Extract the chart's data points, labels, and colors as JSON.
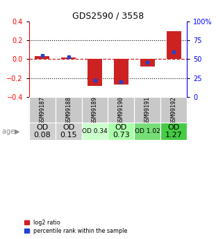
{
  "title": "GDS2590 / 3558",
  "samples": [
    "GSM99187",
    "GSM99188",
    "GSM99189",
    "GSM99190",
    "GSM99191",
    "GSM99192"
  ],
  "log2_ratio": [
    0.03,
    0.02,
    -0.28,
    -0.27,
    -0.08,
    0.3
  ],
  "percentile_rank_pct": [
    55,
    53,
    22,
    20,
    46,
    60
  ],
  "od_values": [
    "OD\n0.08",
    "OD\n0.15",
    "OD 0.34",
    "OD\n0.73",
    "OD 1.02",
    "OD\n1.27"
  ],
  "od_fontsize": [
    8,
    8,
    6.5,
    8,
    6.5,
    8
  ],
  "cell_colors": [
    "#d0d0d0",
    "#d0d0d0",
    "#ccffcc",
    "#aaffaa",
    "#77dd77",
    "#44cc44"
  ],
  "ylim": [
    -0.4,
    0.4
  ],
  "yticks_left": [
    -0.4,
    -0.2,
    0.0,
    0.2,
    0.4
  ],
  "yticks_right": [
    0,
    25,
    50,
    75,
    100
  ],
  "bar_color_red": "#cc2222",
  "bar_color_blue": "#2244cc",
  "bg_color": "#ffffff",
  "zero_line_color": "#cc2222",
  "legend_red": "log2 ratio",
  "legend_blue": "percentile rank within the sample"
}
